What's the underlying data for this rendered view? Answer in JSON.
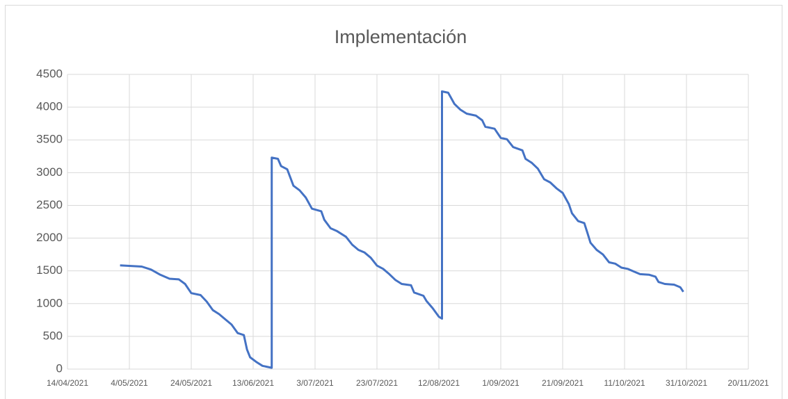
{
  "chart_data": {
    "type": "line",
    "title": "Implementación",
    "x": [
      "2021-05-01",
      "2021-05-08",
      "2021-05-11",
      "2021-05-14",
      "2021-05-17",
      "2021-05-20",
      "2021-05-22",
      "2021-05-24",
      "2021-05-27",
      "2021-05-29",
      "2021-05-31",
      "2021-06-02",
      "2021-06-04",
      "2021-06-06",
      "2021-06-08",
      "2021-06-10",
      "2021-06-11",
      "2021-06-12",
      "2021-06-14",
      "2021-06-16",
      "2021-06-19",
      "2021-06-19",
      "2021-06-21",
      "2021-06-22",
      "2021-06-24",
      "2021-06-26",
      "2021-06-28",
      "2021-06-30",
      "2021-07-02",
      "2021-07-05",
      "2021-07-06",
      "2021-07-08",
      "2021-07-10",
      "2021-07-13",
      "2021-07-15",
      "2021-07-17",
      "2021-07-19",
      "2021-07-21",
      "2021-07-23",
      "2021-07-25",
      "2021-07-27",
      "2021-07-29",
      "2021-07-31",
      "2021-08-03",
      "2021-08-04",
      "2021-08-07",
      "2021-08-08",
      "2021-08-10",
      "2021-08-12",
      "2021-08-13",
      "2021-08-13",
      "2021-08-15",
      "2021-08-17",
      "2021-08-19",
      "2021-08-21",
      "2021-08-24",
      "2021-08-26",
      "2021-08-27",
      "2021-08-30",
      "2021-09-01",
      "2021-09-03",
      "2021-09-05",
      "2021-09-08",
      "2021-09-09",
      "2021-09-11",
      "2021-09-13",
      "2021-09-15",
      "2021-09-17",
      "2021-09-19",
      "2021-09-21",
      "2021-09-23",
      "2021-09-24",
      "2021-09-26",
      "2021-09-28",
      "2021-09-29",
      "2021-09-30",
      "2021-10-02",
      "2021-10-04",
      "2021-10-06",
      "2021-10-08",
      "2021-10-10",
      "2021-10-12",
      "2021-10-14",
      "2021-10-16",
      "2021-10-19",
      "2021-10-21",
      "2021-10-22",
      "2021-10-24",
      "2021-10-27",
      "2021-10-29",
      "2021-10-30"
    ],
    "series": [
      {
        "color": "#4472c4",
        "values": [
          1585,
          1565,
          1520,
          1440,
          1380,
          1370,
          1300,
          1160,
          1130,
          1030,
          900,
          840,
          760,
          680,
          550,
          520,
          300,
          180,
          110,
          50,
          20,
          3230,
          3210,
          3100,
          3050,
          2800,
          2730,
          2620,
          2450,
          2410,
          2280,
          2150,
          2110,
          2020,
          1900,
          1820,
          1780,
          1700,
          1580,
          1530,
          1450,
          1360,
          1300,
          1280,
          1170,
          1120,
          1040,
          930,
          800,
          770,
          4240,
          4220,
          4050,
          3960,
          3900,
          3870,
          3800,
          3700,
          3670,
          3530,
          3510,
          3390,
          3340,
          3210,
          3150,
          3060,
          2900,
          2850,
          2760,
          2690,
          2520,
          2380,
          2260,
          2230,
          2080,
          1930,
          1820,
          1750,
          1630,
          1610,
          1550,
          1530,
          1490,
          1450,
          1440,
          1410,
          1330,
          1300,
          1290,
          1250,
          1180
        ]
      }
    ],
    "xlim": [
      "2021-04-14",
      "2021-11-20"
    ],
    "xticks": [
      {
        "value": "2021-04-14",
        "label": "14/04/2021"
      },
      {
        "value": "2021-05-04",
        "label": "4/05/2021"
      },
      {
        "value": "2021-05-24",
        "label": "24/05/2021"
      },
      {
        "value": "2021-06-13",
        "label": "13/06/2021"
      },
      {
        "value": "2021-07-03",
        "label": "3/07/2021"
      },
      {
        "value": "2021-07-23",
        "label": "23/07/2021"
      },
      {
        "value": "2021-08-12",
        "label": "12/08/2021"
      },
      {
        "value": "2021-09-01",
        "label": "1/09/2021"
      },
      {
        "value": "2021-09-21",
        "label": "21/09/2021"
      },
      {
        "value": "2021-10-11",
        "label": "11/10/2021"
      },
      {
        "value": "2021-10-31",
        "label": "31/10/2021"
      },
      {
        "value": "2021-11-20",
        "label": "20/11/2021"
      }
    ],
    "ylim": [
      0,
      4500
    ],
    "yticks": [
      0,
      500,
      1000,
      1500,
      2000,
      2500,
      3000,
      3500,
      4000,
      4500
    ],
    "grid": true
  }
}
